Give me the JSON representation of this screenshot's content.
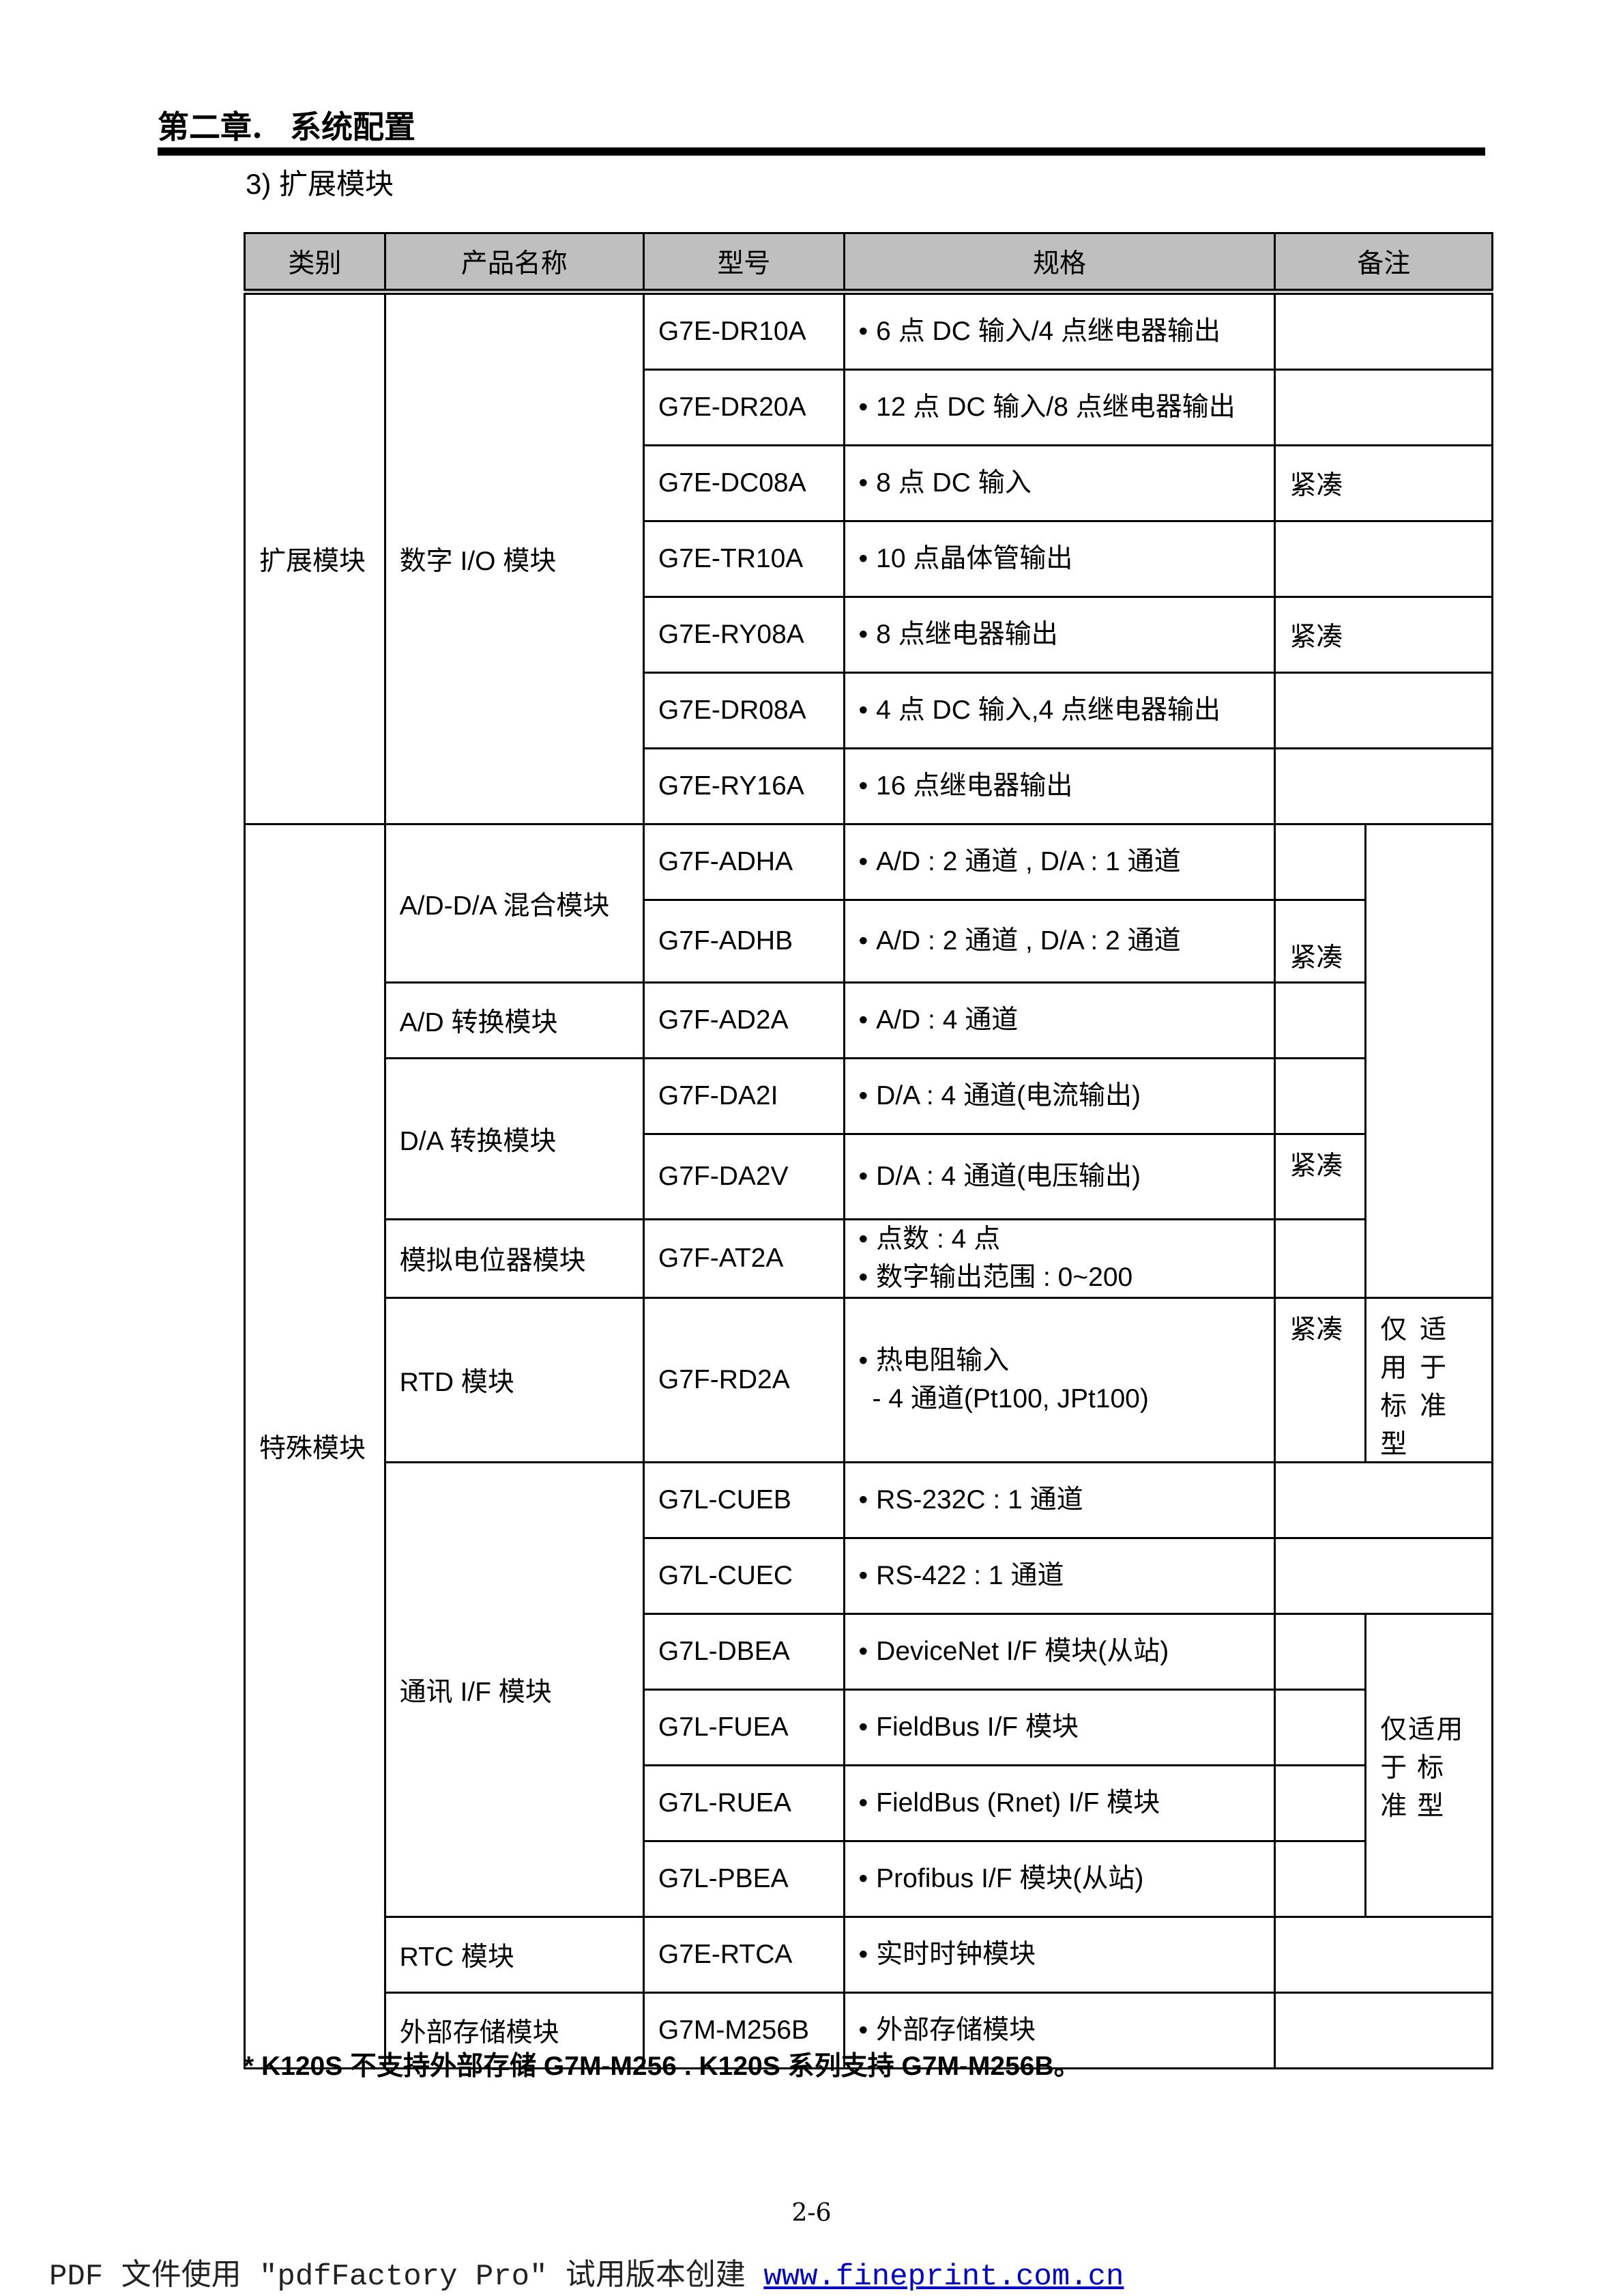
{
  "header": {
    "chapter": "第二章.",
    "chapter_title": "系统配置"
  },
  "section_title": "3) 扩展模块",
  "table": {
    "columns": [
      "类别",
      "产品名称",
      "型号",
      "规格",
      "备注"
    ],
    "groups": {
      "expansion": "扩展模块",
      "digital_io": "数字 I/O 模块",
      "special": "特殊模块",
      "adda": "A/D-D/A 混合模块",
      "ad": "A/D 转换模块",
      "da": "D/A 转换模块",
      "pot": "模拟电位器模块",
      "rtd": "RTD 模块",
      "comm": "通讯 I/F 模块",
      "rtc": "RTC 模块",
      "mem": "外部存储模块"
    },
    "rows": [
      {
        "model": "G7E-DR10A",
        "spec": "6 点 DC 输入/4 点继电器输出",
        "remark": ""
      },
      {
        "model": "G7E-DR20A",
        "spec": "12 点 DC 输入/8 点继电器输出",
        "remark": ""
      },
      {
        "model": "G7E-DC08A",
        "spec": "8 点 DC 输入",
        "remark": "紧凑"
      },
      {
        "model": "G7E-TR10A",
        "spec": "10 点晶体管输出",
        "remark": ""
      },
      {
        "model": "G7E-RY08A",
        "spec": "8 点继电器输出",
        "remark": "紧凑"
      },
      {
        "model": "G7E-DR08A",
        "spec": "4 点 DC  输入,4 点继电器输出",
        "remark": ""
      },
      {
        "model": "G7E-RY16A",
        "spec": "16 点继电器输出",
        "remark": ""
      },
      {
        "model": "G7F-ADHA",
        "spec": "A/D : 2  通道  , D/A : 1  通道",
        "remark": ""
      },
      {
        "model": "G7F-ADHB",
        "spec": "A/D : 2  通道  , D/A : 2  通道",
        "remark": "紧凑"
      },
      {
        "model": "G7F-AD2A",
        "spec": "A/D : 4  通道",
        "remark": ""
      },
      {
        "model": "G7F-DA2I",
        "spec": "D/A : 4  通道(电流输出)",
        "remark": ""
      },
      {
        "model": "G7F-DA2V",
        "spec": "D/A  :  4  通道(电压输出)",
        "remark": "紧凑"
      },
      {
        "model": "G7F-AT2A",
        "spec": "点数  :  4 点",
        "spec2": "数字输出范围  :  0~200",
        "remark": ""
      },
      {
        "model": "G7F-RD2A",
        "spec": "热电阻输入",
        "spec2": "- 4  通道(Pt100,  JPt100)",
        "remark": "紧凑",
        "remark2": "仅 适 用 于 标 准 型"
      },
      {
        "model": "G7L-CUEB",
        "spec": "RS-232C : 1  通道",
        "remark": ""
      },
      {
        "model": "G7L-CUEC",
        "spec": "RS-422 : 1  通道",
        "remark": ""
      },
      {
        "model": "G7L-DBEA",
        "spec": "DeviceNet I/F  模块(从站)",
        "remark": "",
        "remark2": "仅适用于 标 准 型"
      },
      {
        "model": "G7L-FUEA",
        "spec": "FieldBus I/F  模块",
        "remark": ""
      },
      {
        "model": "G7L-RUEA",
        "spec": "FieldBus (Rnet) I/F  模块",
        "remark": ""
      },
      {
        "model": "G7L-PBEA",
        "spec": "Profibus I/F  模块(从站)",
        "remark": ""
      },
      {
        "model": "G7E-RTCA",
        "spec": "实时时钟模块",
        "remark": ""
      },
      {
        "model": "G7M-M256B",
        "spec": "外部存储模块",
        "remark": ""
      }
    ],
    "bullet": "•"
  },
  "footnote": "* K120S 不支持外部存储  G7M-M256 . K120S  系列支持 G7M-M256B。",
  "page_number": "2-6",
  "watermark": {
    "text": "PDF 文件使用 \"pdfFactory Pro\" 试用版本创建 ",
    "link": "www.fineprint.com.cn",
    "link_color": "#0000cc"
  }
}
